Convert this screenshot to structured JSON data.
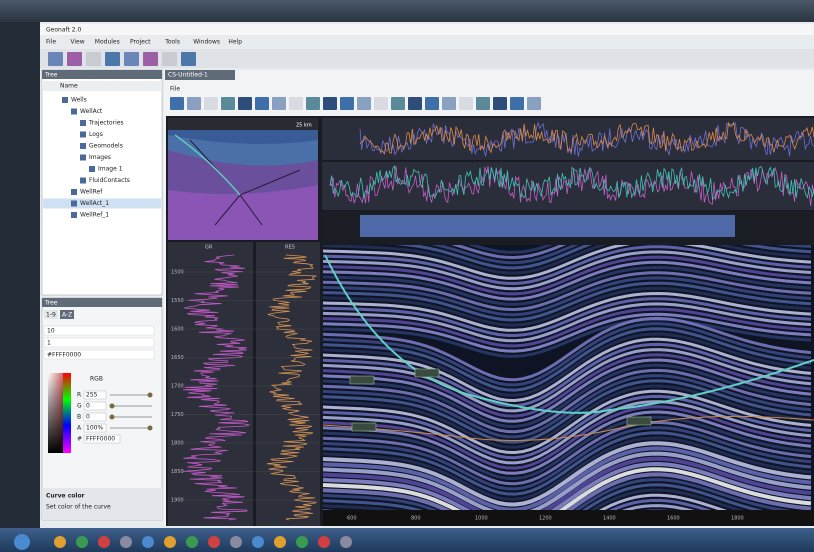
{
  "window": {
    "title": "Geonaft 2.0",
    "menu": [
      "File",
      "View",
      "Modules",
      "Project",
      "Tools",
      "Windows",
      "Help"
    ]
  },
  "tree": {
    "title": "Tree",
    "column": "Name",
    "items": [
      {
        "label": "Wells",
        "children": [
          {
            "label": "WellAct",
            "children": [
              {
                "label": "Trajectories"
              },
              {
                "label": "Logs"
              },
              {
                "label": "Geomodels"
              },
              {
                "label": "Images",
                "children": [
                  {
                    "label": "Image 1"
                  }
                ]
              },
              {
                "label": "FluidContacts"
              }
            ]
          },
          {
            "label": "WellRef"
          },
          {
            "label": "WellAct_1"
          },
          {
            "label": "WellRef_1"
          }
        ]
      }
    ]
  },
  "properties": {
    "title": "Tree",
    "tabs": [
      "1-9",
      "A-Z"
    ],
    "rows": [
      "10",
      "1",
      "#FFFF0000"
    ],
    "color_model": "RGB",
    "channels": [
      {
        "name": "R",
        "value": "255"
      },
      {
        "name": "G",
        "value": "0"
      },
      {
        "name": "B",
        "value": "0"
      },
      {
        "name": "A",
        "value": "100%"
      },
      {
        "name": "#",
        "value": "FFFF0000"
      }
    ],
    "help_title": "Curve color",
    "help_text": "Set color of the curve"
  },
  "document": {
    "tab": "CS-Untitled-1",
    "menu": "File",
    "map_scale": "25 km",
    "log_tracks": [
      "GR",
      "RES"
    ],
    "depths": [
      1500,
      1550,
      1600,
      1650,
      1700,
      1750,
      1800,
      1850,
      1900
    ],
    "distances": [
      600,
      800,
      1000,
      1200,
      1400,
      1600,
      1800
    ]
  }
}
